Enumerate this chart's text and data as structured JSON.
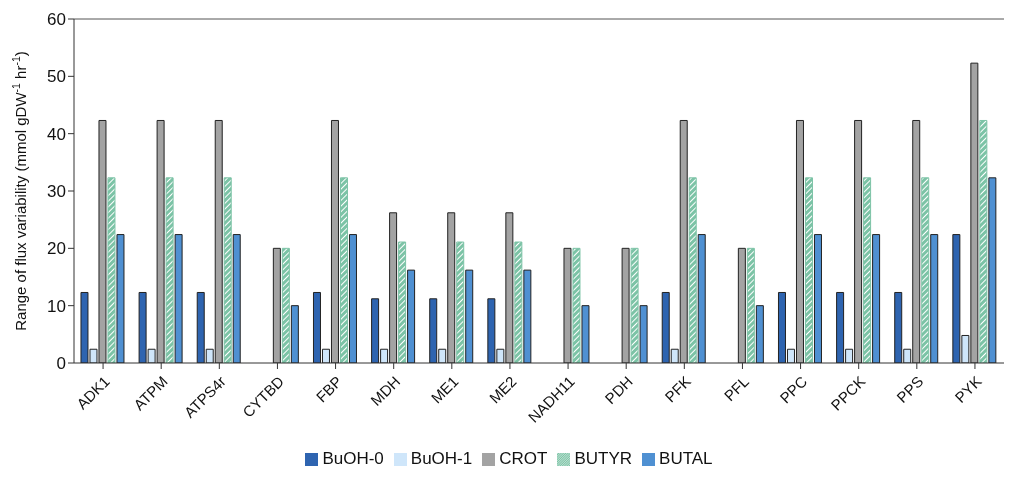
{
  "chart_data": {
    "type": "bar",
    "ylabel": "Range of flux variability (mmol gDW$^{-1}$ hr$^{-1}$)",
    "categories": [
      "ADK1",
      "ATPM",
      "ATPS4r",
      "CYTBD",
      "FBP",
      "MDH",
      "ME1",
      "ME2",
      "NADH11",
      "PDH",
      "PFK",
      "PFL",
      "PPC",
      "PPCK",
      "PPS",
      "PYK"
    ],
    "series": [
      {
        "name": "BuOH-0",
        "color": "#2e64b0",
        "values": [
          12.3,
          12.3,
          12.3,
          null,
          12.3,
          11.2,
          11.2,
          11.2,
          null,
          null,
          12.3,
          null,
          12.3,
          12.3,
          12.3,
          22.4
        ]
      },
      {
        "name": "BuOH-1",
        "color": "#cfe6fa",
        "values": [
          2.4,
          2.4,
          2.4,
          null,
          2.4,
          2.4,
          2.4,
          2.4,
          null,
          null,
          2.4,
          null,
          2.4,
          2.4,
          2.4,
          4.8
        ]
      },
      {
        "name": "CROT",
        "color": "#a3a3a3",
        "values": [
          42.3,
          42.3,
          42.3,
          20,
          42.3,
          26.2,
          26.2,
          26.2,
          20,
          20,
          42.3,
          20,
          42.3,
          42.3,
          42.3,
          52.3
        ]
      },
      {
        "name": "BUTYR",
        "color": "#7cc3a6",
        "values": [
          32.3,
          32.3,
          32.3,
          20,
          32.3,
          21.1,
          21.1,
          21.1,
          20,
          20,
          32.3,
          20,
          32.3,
          32.3,
          32.3,
          42.3
        ]
      },
      {
        "name": "BUTAL",
        "color": "#4f90d2",
        "values": [
          22.4,
          22.4,
          22.4,
          10,
          22.4,
          16.2,
          16.2,
          16.2,
          10,
          10,
          22.4,
          10,
          22.4,
          22.4,
          22.4,
          32.3
        ]
      }
    ],
    "ylim": [
      0,
      60
    ],
    "yticks": [
      0,
      10,
      20,
      30,
      40,
      50,
      60
    ],
    "grid": false,
    "legend": "bottom"
  }
}
